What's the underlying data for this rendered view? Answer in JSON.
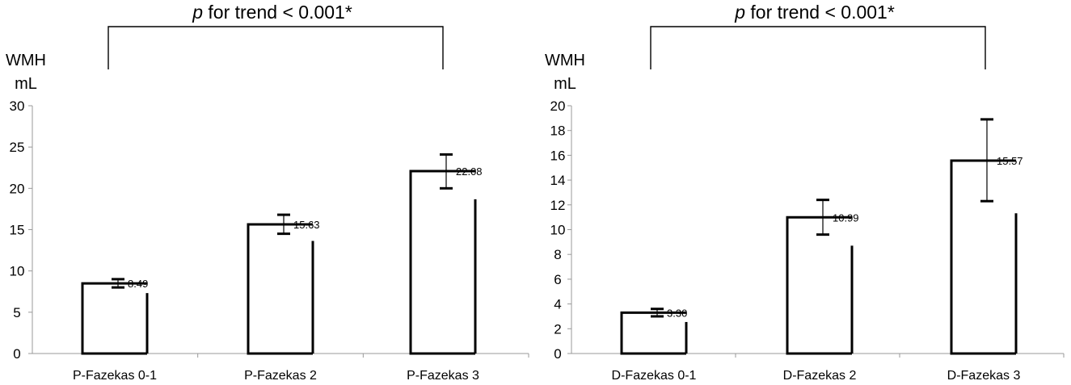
{
  "chart_data": [
    {
      "type": "bar",
      "categories": [
        "P-Fazekas 0-1",
        "P-Fazekas 2",
        "P-Fazekas 3"
      ],
      "values": [
        8.49,
        15.63,
        22.08
      ],
      "value_labels": [
        "8.49",
        "15.63",
        "22.08"
      ],
      "error_low": [
        8.0,
        14.5,
        20.0
      ],
      "error_high": [
        9.0,
        16.8,
        24.1
      ],
      "ylabel_line1": "WMH",
      "ylabel_line2": "mL",
      "ylim": [
        0,
        30
      ],
      "yticks": [
        0,
        5,
        10,
        15,
        20,
        25,
        30
      ],
      "annotation_p": "p",
      "annotation_rest": " for trend < 0.001*",
      "grid": false,
      "legend": "none"
    },
    {
      "type": "bar",
      "categories": [
        "D-Fazekas 0-1",
        "D-Fazekas 2",
        "D-Fazekas 3"
      ],
      "values": [
        3.3,
        10.99,
        15.57
      ],
      "value_labels": [
        "3.30",
        "10.99",
        "15.57"
      ],
      "error_low": [
        3.0,
        9.6,
        12.3
      ],
      "error_high": [
        3.6,
        12.4,
        18.9
      ],
      "ylabel_line1": "WMH",
      "ylabel_line2": "mL",
      "ylim": [
        0,
        20
      ],
      "yticks": [
        0,
        2,
        4,
        6,
        8,
        10,
        12,
        14,
        16,
        18,
        20
      ],
      "annotation_p": "p",
      "annotation_rest": " for trend < 0.001*",
      "grid": false,
      "legend": "none"
    }
  ]
}
